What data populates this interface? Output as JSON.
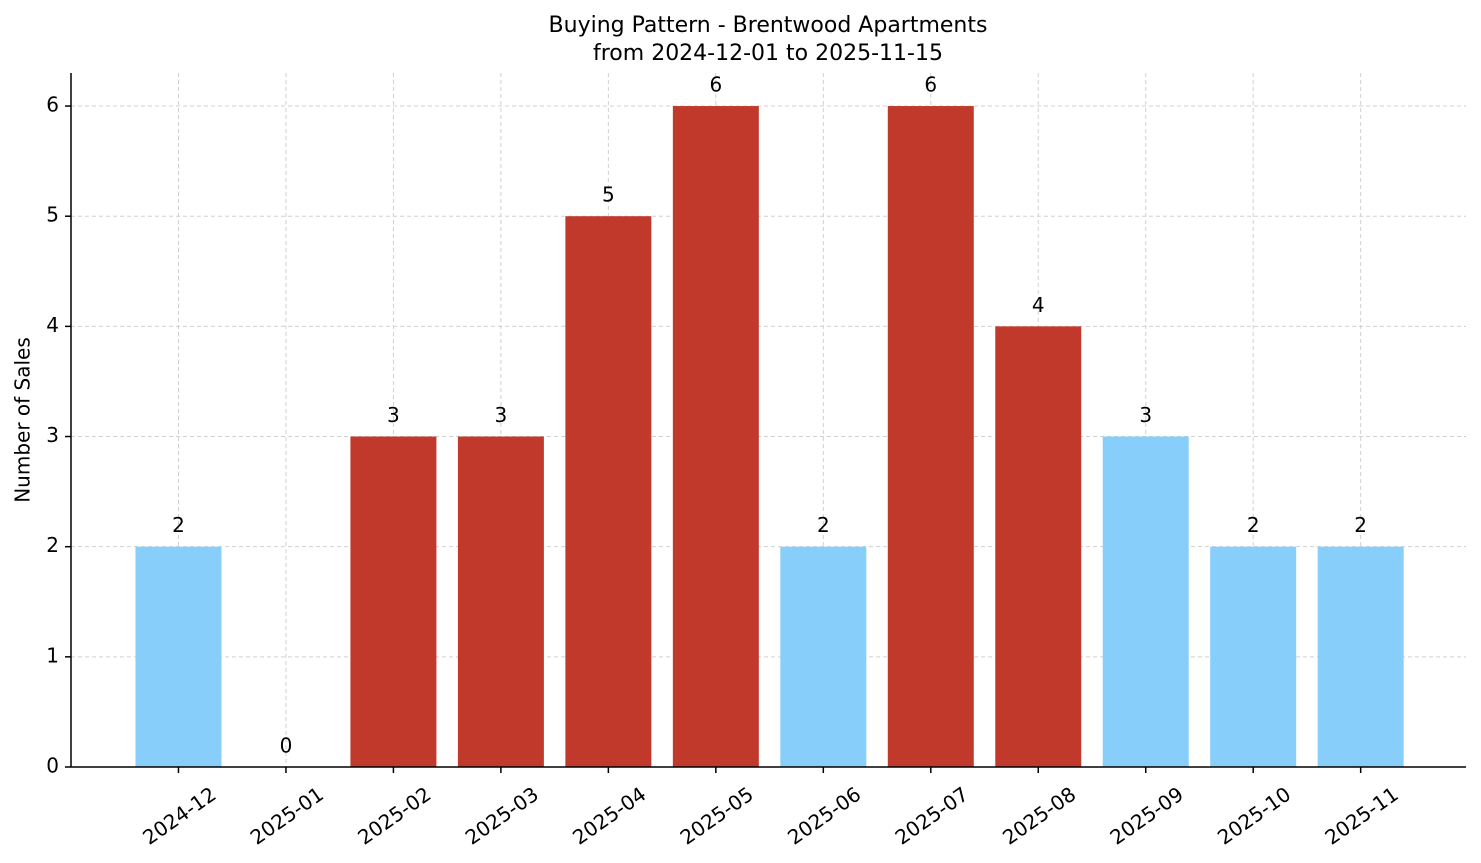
{
  "chart_data": {
    "type": "bar",
    "title": "Buying Pattern - Brentwood Apartments",
    "subtitle": "from 2024-12-01 to 2025-11-15",
    "ylabel": "Number of Sales",
    "categories": [
      "2024-12",
      "2025-01",
      "2025-02",
      "2025-03",
      "2025-04",
      "2025-05",
      "2025-06",
      "2025-07",
      "2025-08",
      "2025-09",
      "2025-10",
      "2025-11"
    ],
    "values": [
      2,
      0,
      3,
      3,
      5,
      6,
      2,
      6,
      4,
      3,
      2,
      2
    ],
    "colors": [
      "#87cefa",
      "#87cefa",
      "#c0392b",
      "#c0392b",
      "#c0392b",
      "#c0392b",
      "#87cefa",
      "#c0392b",
      "#c0392b",
      "#87cefa",
      "#87cefa",
      "#87cefa"
    ],
    "ylim": [
      0,
      6.3
    ],
    "yticks": [
      0,
      1,
      2,
      3,
      4,
      5,
      6
    ],
    "grid": true
  }
}
